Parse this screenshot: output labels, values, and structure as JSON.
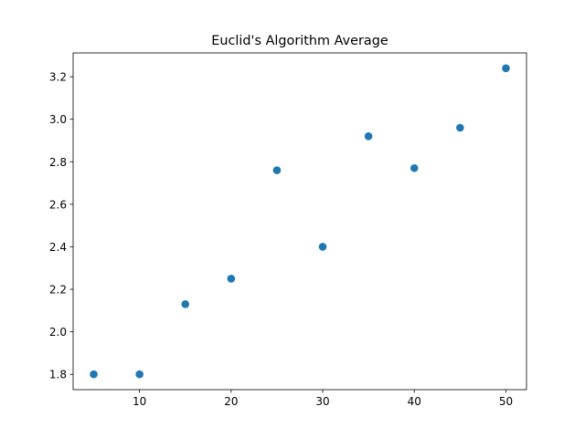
{
  "chart_data": {
    "type": "scatter",
    "title": "Euclid's Algorithm Average",
    "xlabel": "",
    "ylabel": "",
    "x": [
      5,
      10,
      15,
      20,
      25,
      30,
      35,
      40,
      45,
      50
    ],
    "y": [
      1.8,
      1.8,
      2.13,
      2.25,
      2.76,
      2.4,
      2.92,
      2.77,
      2.96,
      3.24
    ],
    "xlim": [
      2.75,
      52.25
    ],
    "ylim": [
      1.728,
      3.312
    ],
    "xticks": [
      10,
      20,
      30,
      40,
      50
    ],
    "yticks": [
      1.8,
      2.0,
      2.2,
      2.4,
      2.6,
      2.8,
      3.0,
      3.2
    ],
    "xtick_labels": [
      "10",
      "20",
      "30",
      "40",
      "50"
    ],
    "ytick_labels": [
      "1.8",
      "2.0",
      "2.2",
      "2.4",
      "2.6",
      "2.8",
      "3.0",
      "3.2"
    ],
    "grid": false,
    "marker_color": "#1f77b4"
  }
}
